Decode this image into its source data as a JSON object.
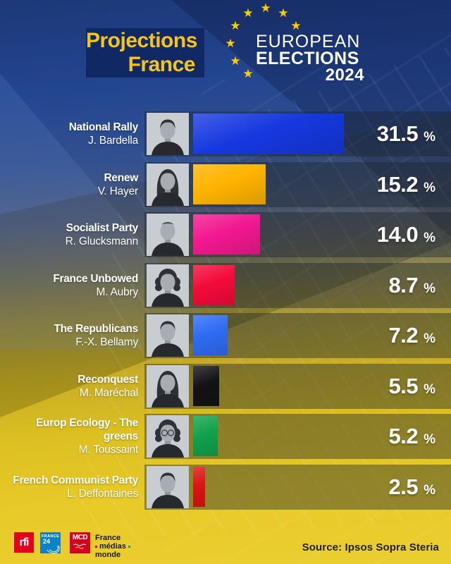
{
  "header": {
    "title_line1": "Projections",
    "title_line2": "France",
    "title_color": "#F6C51B",
    "eu_logo": {
      "line1": "EUROPEAN",
      "line2": "ELECTIONS",
      "line3": "2024",
      "star_color": "#FFCC00",
      "visible_star_count": 8
    }
  },
  "chart_data": {
    "type": "bar",
    "orientation": "horizontal",
    "title": "Projections France",
    "unit": "%",
    "grid": false,
    "legend": "none",
    "xlim": [
      0,
      35
    ],
    "categories": [
      "National Rally",
      "Renew",
      "Socialist Party",
      "France Unbowed",
      "The Republicans",
      "Reconquest",
      "Europ Ecology - The greens",
      "French Communist Party"
    ],
    "candidates": [
      "J. Bardella",
      "V. Hayer",
      "R. Glucksmann",
      "M. Aubry",
      "F.-X. Bellamy",
      "M. Maréchal",
      "M. Toussaint",
      "L. Deffontaines"
    ],
    "values": [
      31.5,
      15.2,
      14.0,
      8.7,
      7.2,
      5.5,
      5.2,
      2.5
    ],
    "value_labels": [
      "31.5",
      "15.2",
      "14.0",
      "8.7",
      "7.2",
      "5.5",
      "5.2",
      "2.5"
    ],
    "bar_colors": [
      "#1638DF",
      "#FFB301",
      "#F2188F",
      "#F40A3A",
      "#2F6CF3",
      "#131316",
      "#12A24B",
      "#DC1414"
    ],
    "portraits": [
      "man-short-hair-portrait",
      "woman-updo-portrait",
      "man-balding-portrait",
      "woman-curly-hair-portrait",
      "man-short-hair-portrait",
      "woman-long-hair-portrait",
      "woman-curly-hair-glasses-portrait",
      "man-short-hair-portrait"
    ]
  },
  "footer": {
    "source": "Source: Ipsos Sopra Steria",
    "logos": {
      "rfi_label": "rfi",
      "france24_line1": "FRANCE",
      "france24_line2": "24",
      "mcd_label": "MCD",
      "fmm_line1": "France",
      "fmm_line2": "médias",
      "fmm_line3": "monde"
    }
  }
}
